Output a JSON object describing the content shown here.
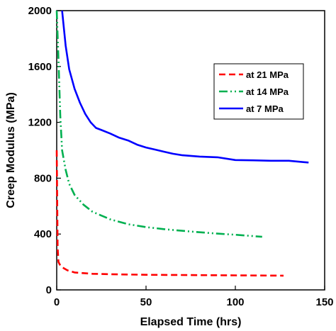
{
  "chart_data": {
    "type": "line",
    "title": "",
    "xlabel": "Elapsed Time (hrs)",
    "ylabel": "Creep Modulus (MPa)",
    "xlim": [
      0,
      150
    ],
    "ylim": [
      0,
      2000
    ],
    "xticks": [
      0,
      50,
      100,
      150
    ],
    "yticks": [
      0,
      400,
      800,
      1200,
      1600,
      2000
    ],
    "grid": false,
    "legend_position": "top-right",
    "series": [
      {
        "name": "at 21 MPa",
        "color": "#ff0000",
        "dash": "dashed",
        "x": [
          0,
          0.5,
          1,
          2,
          4,
          6,
          10,
          20,
          30,
          50,
          75,
          100,
          127
        ],
        "y": [
          1000,
          300,
          200,
          175,
          155,
          140,
          125,
          115,
          112,
          108,
          106,
          104,
          102
        ]
      },
      {
        "name": "at 14 MPa",
        "color": "#00b050",
        "dash": "dash-dot-dot",
        "x": [
          0,
          1,
          2,
          3,
          5,
          7,
          10,
          15,
          20,
          30,
          40,
          50,
          60,
          75,
          90,
          100,
          115
        ],
        "y": [
          2000,
          1650,
          1250,
          1000,
          860,
          760,
          680,
          610,
          560,
          505,
          470,
          450,
          435,
          418,
          403,
          395,
          380
        ]
      },
      {
        "name": "at 7 MPa",
        "color": "#0000ff",
        "dash": "solid",
        "x": [
          3,
          5,
          7,
          10,
          13,
          16,
          19,
          22,
          25,
          30,
          35,
          40,
          45,
          50,
          55,
          60,
          65,
          70,
          80,
          90,
          100,
          110,
          120,
          130,
          138,
          141
        ],
        "y": [
          2000,
          1750,
          1580,
          1440,
          1340,
          1260,
          1200,
          1160,
          1145,
          1120,
          1090,
          1070,
          1040,
          1020,
          1005,
          990,
          975,
          965,
          955,
          950,
          930,
          928,
          925,
          925,
          915,
          912
        ]
      }
    ]
  }
}
